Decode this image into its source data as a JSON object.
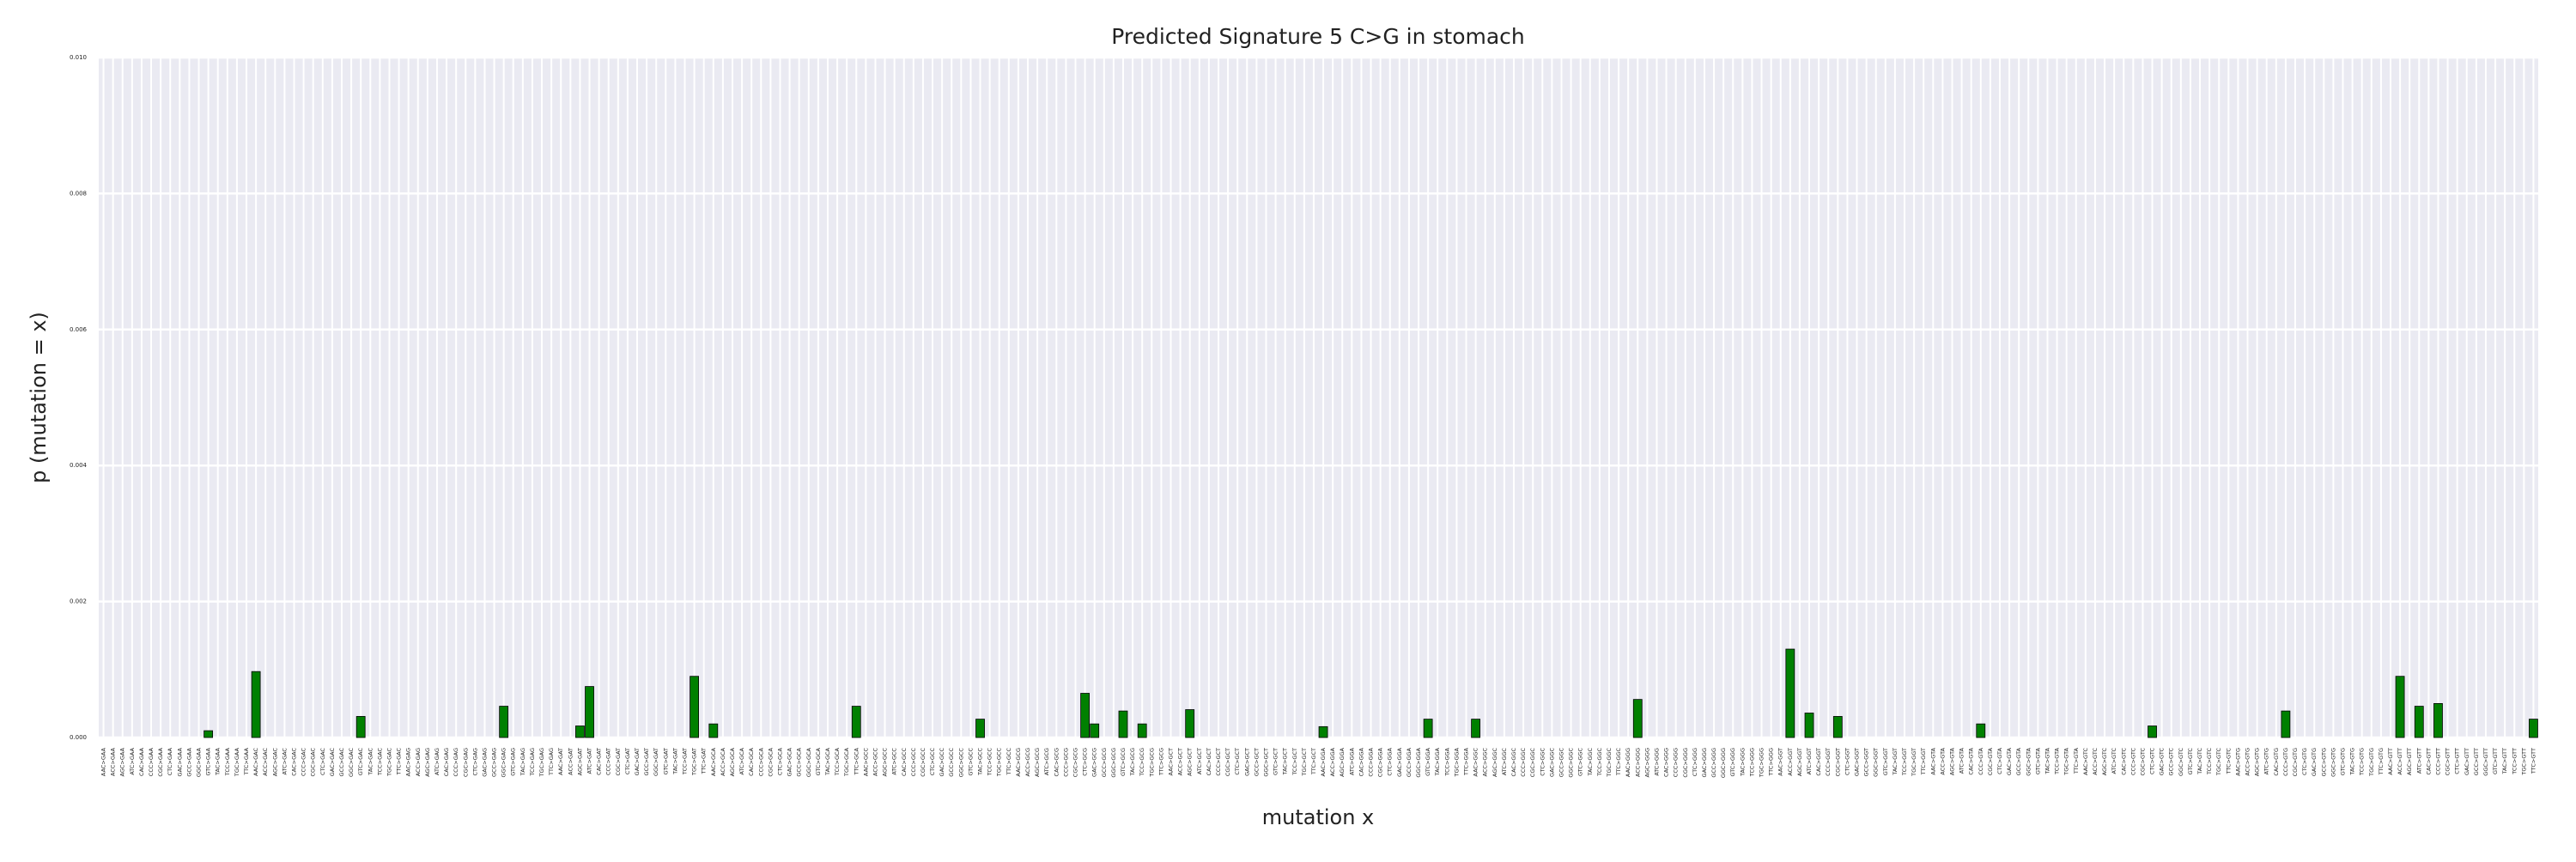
{
  "chart_data": {
    "type": "bar",
    "title": "Predicted Signature 5 C>G in stomach",
    "xlabel": "mutation x",
    "ylabel": "p (mutation = x)",
    "color": "#008000",
    "grid": true,
    "ylim": [
      0,
      0.01
    ],
    "yticks": [
      {
        "value": 0,
        "label": "0.000"
      },
      {
        "value": 0.002,
        "label": "0.002"
      },
      {
        "value": 0.004,
        "label": "0.004"
      },
      {
        "value": 0.006,
        "label": "0.006"
      },
      {
        "value": 0.008,
        "label": "0.008"
      },
      {
        "value": 0.01,
        "label": "0.010"
      }
    ],
    "categories": [
      "AAC>GAA",
      "ACC>GAA",
      "AGC>GAA",
      "ATC>GAA",
      "CAC>GAA",
      "CCC>GAA",
      "CGC>GAA",
      "CTC>GAA",
      "GAC>GAA",
      "GCC>GAA",
      "GGC>GAA",
      "GTC>GAA",
      "TAC>GAA",
      "TCC>GAA",
      "TGC>GAA",
      "TTC>GAA",
      "AAC>GAC",
      "ACC>GAC",
      "AGC>GAC",
      "ATC>GAC",
      "CAC>GAC",
      "CCC>GAC",
      "CGC>GAC",
      "CTC>GAC",
      "GAC>GAC",
      "GCC>GAC",
      "GGC>GAC",
      "GTC>GAC",
      "TAC>GAC",
      "TCC>GAC",
      "TGC>GAC",
      "TTC>GAC",
      "AAC>GAG",
      "ACC>GAG",
      "AGC>GAG",
      "ATC>GAG",
      "CAC>GAG",
      "CCC>GAG",
      "CGC>GAG",
      "CTC>GAG",
      "GAC>GAG",
      "GCC>GAG",
      "GGC>GAG",
      "GTC>GAG",
      "TAC>GAG",
      "TCC>GAG",
      "TGC>GAG",
      "TTC>GAG",
      "AAC>GAT",
      "ACC>GAT",
      "AGC>GAT",
      "ATC>GAT",
      "CAC>GAT",
      "CCC>GAT",
      "CGC>GAT",
      "CTC>GAT",
      "GAC>GAT",
      "GCC>GAT",
      "GGC>GAT",
      "GTC>GAT",
      "TAC>GAT",
      "TCC>GAT",
      "TGC>GAT",
      "TTC>GAT",
      "AAC>GCA",
      "ACC>GCA",
      "AGC>GCA",
      "ATC>GCA",
      "CAC>GCA",
      "CCC>GCA",
      "CGC>GCA",
      "CTC>GCA",
      "GAC>GCA",
      "GCC>GCA",
      "GGC>GCA",
      "GTC>GCA",
      "TAC>GCA",
      "TCC>GCA",
      "TGC>GCA",
      "TTC>GCA",
      "AAC>GCC",
      "ACC>GCC",
      "AGC>GCC",
      "ATC>GCC",
      "CAC>GCC",
      "CCC>GCC",
      "CGC>GCC",
      "CTC>GCC",
      "GAC>GCC",
      "GCC>GCC",
      "GGC>GCC",
      "GTC>GCC",
      "TAC>GCC",
      "TCC>GCC",
      "TGC>GCC",
      "TTC>GCC",
      "AAC>GCG",
      "ACC>GCG",
      "AGC>GCG",
      "ATC>GCG",
      "CAC>GCG",
      "CCC>GCG",
      "CGC>GCG",
      "CTC>GCG",
      "GAC>GCG",
      "GCC>GCG",
      "GGC>GCG",
      "GTC>GCG",
      "TAC>GCG",
      "TCC>GCG",
      "TGC>GCG",
      "TTC>GCG",
      "AAC>GCT",
      "ACC>GCT",
      "AGC>GCT",
      "ATC>GCT",
      "CAC>GCT",
      "CCC>GCT",
      "CGC>GCT",
      "CTC>GCT",
      "GAC>GCT",
      "GCC>GCT",
      "GGC>GCT",
      "GTC>GCT",
      "TAC>GCT",
      "TCC>GCT",
      "TGC>GCT",
      "TTC>GCT",
      "AAC>GGA",
      "ACC>GGA",
      "AGC>GGA",
      "ATC>GGA",
      "CAC>GGA",
      "CCC>GGA",
      "CGC>GGA",
      "CTC>GGA",
      "GAC>GGA",
      "GCC>GGA",
      "GGC>GGA",
      "GTC>GGA",
      "TAC>GGA",
      "TCC>GGA",
      "TGC>GGA",
      "TTC>GGA",
      "AAC>GGC",
      "ACC>GGC",
      "AGC>GGC",
      "ATC>GGC",
      "CAC>GGC",
      "CCC>GGC",
      "CGC>GGC",
      "CTC>GGC",
      "GAC>GGC",
      "GCC>GGC",
      "GGC>GGC",
      "GTC>GGC",
      "TAC>GGC",
      "TCC>GGC",
      "TGC>GGC",
      "TTC>GGC",
      "AAC>GGG",
      "ACC>GGG",
      "AGC>GGG",
      "ATC>GGG",
      "CAC>GGG",
      "CCC>GGG",
      "CGC>GGG",
      "CTC>GGG",
      "GAC>GGG",
      "GCC>GGG",
      "GGC>GGG",
      "GTC>GGG",
      "TAC>GGG",
      "TCC>GGG",
      "TGC>GGG",
      "TTC>GGG",
      "AAC>GGT",
      "ACC>GGT",
      "AGC>GGT",
      "ATC>GGT",
      "CAC>GGT",
      "CCC>GGT",
      "CGC>GGT",
      "CTC>GGT",
      "GAC>GGT",
      "GCC>GGT",
      "GGC>GGT",
      "GTC>GGT",
      "TAC>GGT",
      "TCC>GGT",
      "TGC>GGT",
      "TTC>GGT",
      "AAC>GTA",
      "ACC>GTA",
      "AGC>GTA",
      "ATC>GTA",
      "CAC>GTA",
      "CCC>GTA",
      "CGC>GTA",
      "CTC>GTA",
      "GAC>GTA",
      "GCC>GTA",
      "GGC>GTA",
      "GTC>GTA",
      "TAC>GTA",
      "TCC>GTA",
      "TGC>GTA",
      "TTC>GTA",
      "AAC>GTC",
      "ACC>GTC",
      "AGC>GTC",
      "ATC>GTC",
      "CAC>GTC",
      "CCC>GTC",
      "CGC>GTC",
      "CTC>GTC",
      "GAC>GTC",
      "GCC>GTC",
      "GGC>GTC",
      "GTC>GTC",
      "TAC>GTC",
      "TCC>GTC",
      "TGC>GTC",
      "TTC>GTC",
      "AAC>GTG",
      "ACC>GTG",
      "AGC>GTG",
      "ATC>GTG",
      "CAC>GTG",
      "CCC>GTG",
      "CGC>GTG",
      "CTC>GTG",
      "GAC>GTG",
      "GCC>GTG",
      "GGC>GTG",
      "GTC>GTG",
      "TAC>GTG",
      "TCC>GTG",
      "TGC>GTG",
      "TTC>GTG",
      "AAC>GTT",
      "ACC>GTT",
      "AGC>GTT",
      "ATC>GTT",
      "CAC>GTT",
      "CCC>GTT",
      "CGC>GTT",
      "CTC>GTT",
      "GAC>GTT",
      "GCC>GTT",
      "GGC>GTT",
      "GTC>GTT",
      "TAC>GTT",
      "TCC>GTT",
      "TGC>GTT",
      "TTC>GTT"
    ],
    "values": [
      0,
      0,
      0,
      0,
      0,
      0,
      0,
      0,
      0,
      0,
      0,
      0.0001,
      0,
      0,
      0,
      0,
      0.00097,
      0,
      0,
      0,
      0,
      0,
      0,
      0,
      0,
      0,
      0,
      0.00031,
      0,
      0,
      0,
      0,
      0,
      0,
      0,
      0,
      0,
      0,
      0,
      0,
      0,
      0,
      0.00046,
      0,
      0,
      0,
      0,
      0,
      0,
      0,
      0.00017,
      0.00075,
      0,
      0,
      0,
      0,
      0,
      0,
      0,
      0,
      0,
      0,
      0.0009,
      0,
      0.0002,
      0,
      0,
      0,
      0,
      0,
      0,
      0,
      0,
      0,
      0,
      0,
      0,
      0,
      0,
      0.00046,
      0,
      0,
      0,
      0,
      0,
      0,
      0,
      0,
      0,
      0,
      0,
      0,
      0.00027,
      0,
      0,
      0,
      0,
      0,
      0,
      0,
      0,
      0,
      0,
      0.00065,
      0.0002,
      0,
      0,
      0.00039,
      0,
      0.0002,
      0,
      0,
      0,
      0,
      0.00041,
      0,
      0,
      0,
      0,
      0,
      0,
      0,
      0,
      0,
      0,
      0,
      0,
      0,
      0.00016,
      0,
      0,
      0,
      0,
      0,
      0,
      0,
      0,
      0,
      0,
      0.00027,
      0,
      0,
      0,
      0,
      0.00027,
      0,
      0,
      0,
      0,
      0,
      0,
      0,
      0,
      0,
      0,
      0,
      0,
      0,
      0,
      0,
      0,
      0.00056,
      0,
      0,
      0,
      0,
      0,
      0,
      0,
      0,
      0,
      0,
      0,
      0,
      0,
      0,
      0,
      0.0013,
      0,
      0.00036,
      0,
      0,
      0.00031,
      0,
      0,
      0,
      0,
      0,
      0,
      0,
      0,
      0,
      0,
      0,
      0,
      0,
      0,
      0.0002,
      0,
      0,
      0,
      0,
      0,
      0,
      0,
      0,
      0,
      0,
      0,
      0,
      0,
      0,
      0,
      0,
      0,
      0.00017,
      0,
      0,
      0,
      0,
      0,
      0,
      0,
      0,
      0,
      0,
      0,
      0,
      0,
      0.00039,
      0,
      0,
      0,
      0,
      0,
      0,
      0,
      0,
      0,
      0,
      0,
      0.0009,
      0,
      0.00046,
      0,
      0.0005,
      0,
      0,
      0,
      0,
      0,
      0,
      0,
      0,
      0,
      0.00027
    ]
  }
}
